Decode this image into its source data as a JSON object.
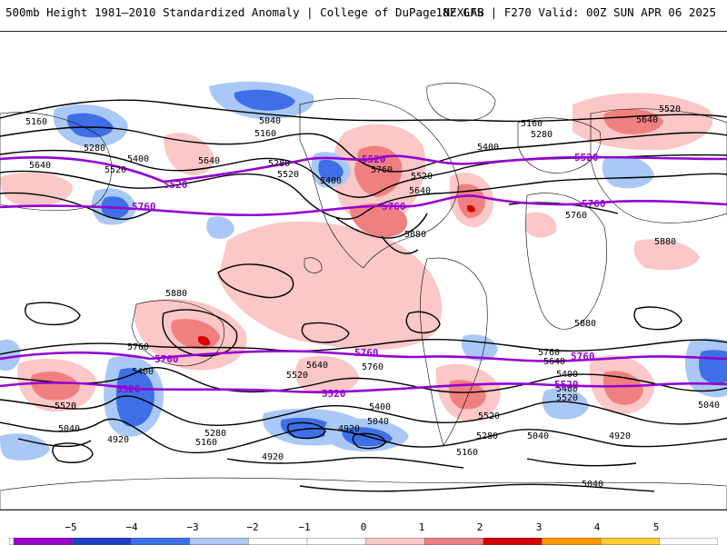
{
  "header": {
    "title": "500mb Height 1981–2010 Standardized Anomaly | College of DuPage NEXLAB",
    "run_info": "18Z GFS | F270 Valid: 00Z SUN APR 06 2025"
  },
  "colors": {
    "contour_black": "#000000",
    "contour_purple": "#9400d3",
    "coastline": "#000000"
  },
  "colorbar": {
    "ticks": [
      "−5",
      "−4",
      "−3",
      "−2",
      "−1",
      "0",
      "1",
      "2",
      "3",
      "4",
      "5"
    ],
    "bins": [
      {
        "from": -5,
        "to": -4,
        "color": "#9b00cc"
      },
      {
        "from": -4,
        "to": -3,
        "color": "#1e3fc8"
      },
      {
        "from": -3,
        "to": -2,
        "color": "#3f6fe6"
      },
      {
        "from": -2,
        "to": -1,
        "color": "#a9c8f5"
      },
      {
        "from": -1,
        "to": 0,
        "color": "#ffffff"
      },
      {
        "from": 0,
        "to": 1,
        "color": "#ffffff"
      },
      {
        "from": 1,
        "to": 2,
        "color": "#fbc7c7"
      },
      {
        "from": 2,
        "to": 3,
        "color": "#f08080"
      },
      {
        "from": 3,
        "to": 4,
        "color": "#d60000"
      },
      {
        "from": 4,
        "to": 5,
        "color": "#ff9900"
      },
      {
        "from": 5,
        "to": 6,
        "color": "#ffcc33"
      }
    ]
  },
  "contour_labels": {
    "black": [
      "5160",
      "5280",
      "5400",
      "5520",
      "5640",
      "5760",
      "5880",
      "5040",
      "4920"
    ],
    "purple": [
      "5520",
      "5760"
    ]
  },
  "map_labels": [
    {
      "text": "5160",
      "kind": "black"
    },
    {
      "text": "5280",
      "kind": "black"
    },
    {
      "text": "5640",
      "kind": "black"
    },
    {
      "text": "5520",
      "kind": "black"
    },
    {
      "text": "5400",
      "kind": "black"
    },
    {
      "text": "5640",
      "kind": "black"
    },
    {
      "text": "5040",
      "kind": "black"
    },
    {
      "text": "5160",
      "kind": "black"
    },
    {
      "text": "5280",
      "kind": "black"
    },
    {
      "text": "5520",
      "kind": "black"
    },
    {
      "text": "5400",
      "kind": "black"
    },
    {
      "text": "5760",
      "kind": "black"
    },
    {
      "text": "5520",
      "kind": "black"
    },
    {
      "text": "5640",
      "kind": "black"
    },
    {
      "text": "5400",
      "kind": "black"
    },
    {
      "text": "5160",
      "kind": "black"
    },
    {
      "text": "5280",
      "kind": "black"
    },
    {
      "text": "5640",
      "kind": "black"
    },
    {
      "text": "5520",
      "kind": "black"
    },
    {
      "text": "5760",
      "kind": "black"
    },
    {
      "text": "5880",
      "kind": "black"
    },
    {
      "text": "5880",
      "kind": "black"
    },
    {
      "text": "5880",
      "kind": "black"
    },
    {
      "text": "5880",
      "kind": "black"
    },
    {
      "text": "5760",
      "kind": "black"
    },
    {
      "text": "5400",
      "kind": "black"
    },
    {
      "text": "5520",
      "kind": "black"
    },
    {
      "text": "5640",
      "kind": "black"
    },
    {
      "text": "5760",
      "kind": "black"
    },
    {
      "text": "5520",
      "kind": "black"
    },
    {
      "text": "5400",
      "kind": "black"
    },
    {
      "text": "5040",
      "kind": "black"
    },
    {
      "text": "4920",
      "kind": "black"
    },
    {
      "text": "5280",
      "kind": "black"
    },
    {
      "text": "5160",
      "kind": "black"
    },
    {
      "text": "4920",
      "kind": "black"
    },
    {
      "text": "4920",
      "kind": "black"
    },
    {
      "text": "5040",
      "kind": "black"
    },
    {
      "text": "5400",
      "kind": "black"
    },
    {
      "text": "5520",
      "kind": "black"
    },
    {
      "text": "5280",
      "kind": "black"
    },
    {
      "text": "5160",
      "kind": "black"
    },
    {
      "text": "5760",
      "kind": "black"
    },
    {
      "text": "5640",
      "kind": "black"
    },
    {
      "text": "5400",
      "kind": "black"
    },
    {
      "text": "5520",
      "kind": "black"
    },
    {
      "text": "5040",
      "kind": "black"
    },
    {
      "text": "4920",
      "kind": "black"
    },
    {
      "text": "5040",
      "kind": "black"
    },
    {
      "text": "5040",
      "kind": "black"
    },
    {
      "text": "5520",
      "kind": "purple"
    },
    {
      "text": "5520",
      "kind": "purple"
    },
    {
      "text": "5520",
      "kind": "purple"
    },
    {
      "text": "5760",
      "kind": "purple"
    },
    {
      "text": "5760",
      "kind": "purple"
    },
    {
      "text": "5760",
      "kind": "purple"
    },
    {
      "text": "5760",
      "kind": "purple"
    },
    {
      "text": "5760",
      "kind": "purple"
    },
    {
      "text": "5520",
      "kind": "purple"
    },
    {
      "text": "5520",
      "kind": "purple"
    },
    {
      "text": "5520",
      "kind": "purple"
    },
    {
      "text": "5760",
      "kind": "purple"
    }
  ]
}
